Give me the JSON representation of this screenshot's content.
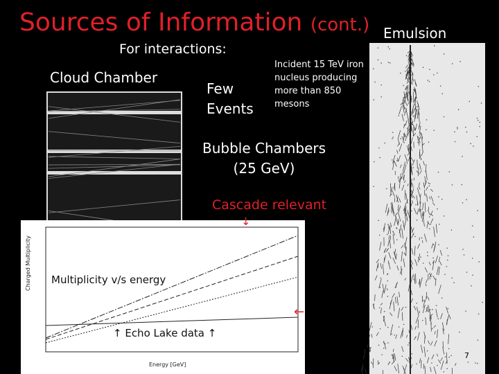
{
  "header": {
    "title": "Sources of Information",
    "title_suffix": "(cont.)",
    "subtitle": "For interactions:"
  },
  "cloud_chamber": {
    "label": "Cloud Chamber",
    "note": [
      "Few",
      "Events"
    ]
  },
  "emulsion": {
    "label": "Emulsion",
    "caption": [
      "Incident 15 TeV iron",
      "nucleus producing",
      "more than 850",
      "mesons"
    ]
  },
  "bubble_chambers": {
    "label": [
      "Bubble Chambers",
      "(25 GeV)"
    ]
  },
  "cascade": {
    "label": "Cascade relevant",
    "arrow": "↓"
  },
  "plot": {
    "title": "Multiplicity v/s energy",
    "y_label": "Charged Multiplicity",
    "x_label": "Energy [GeV]",
    "arrow": "←",
    "echo": "↑ Echo Lake data ↑"
  },
  "page_number": "7"
}
